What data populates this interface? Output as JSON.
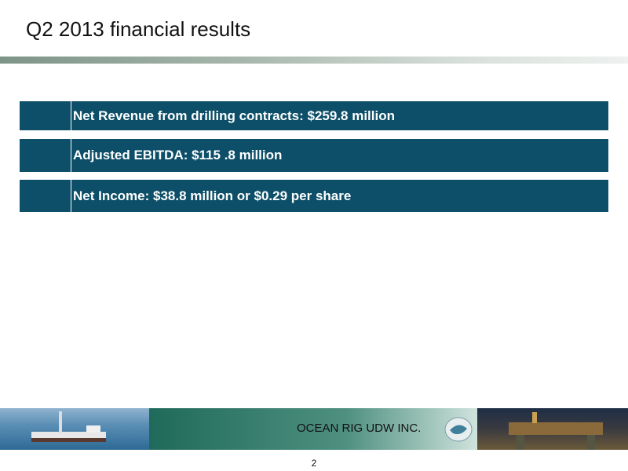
{
  "header": {
    "title": "Q2 2013 financial results"
  },
  "highlights": [
    "Net Revenue from drilling contracts: $259.8 million",
    "Adjusted EBITDA: $115 .8 million",
    "Net Income: $38.8 million or $0.29 per share"
  ],
  "footer": {
    "company": "OCEAN RIG UDW INC.",
    "page_number": "2"
  }
}
